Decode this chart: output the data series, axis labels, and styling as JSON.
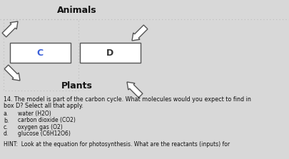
{
  "bg_color": "#d8d8d8",
  "title": "Animals",
  "plants_label": "Plants",
  "box_c_label": "C",
  "box_d_label": "D",
  "box_c_color": "#3a5fd9",
  "box_d_color": "#333333",
  "question_lines": [
    "14. The model is part of the carbon cycle. What molecules would you expect to find in",
    "box D? Select all that apply."
  ],
  "option_letters": [
    "a.",
    "b.",
    "c.",
    "d."
  ],
  "option_texts": [
    "water (H2O)",
    "carbon dioxide (CO2)",
    "oxygen gas (O2)",
    "glucose (C6H12O6)"
  ],
  "hint_text": "HINT:  Look at the equation for photosynthesis. What are the reactants (inputs) for",
  "dotted_color": "#bcbcbc",
  "arrow_edge_color": "#555555",
  "box_border_color": "#555555",
  "text_color": "#111111"
}
